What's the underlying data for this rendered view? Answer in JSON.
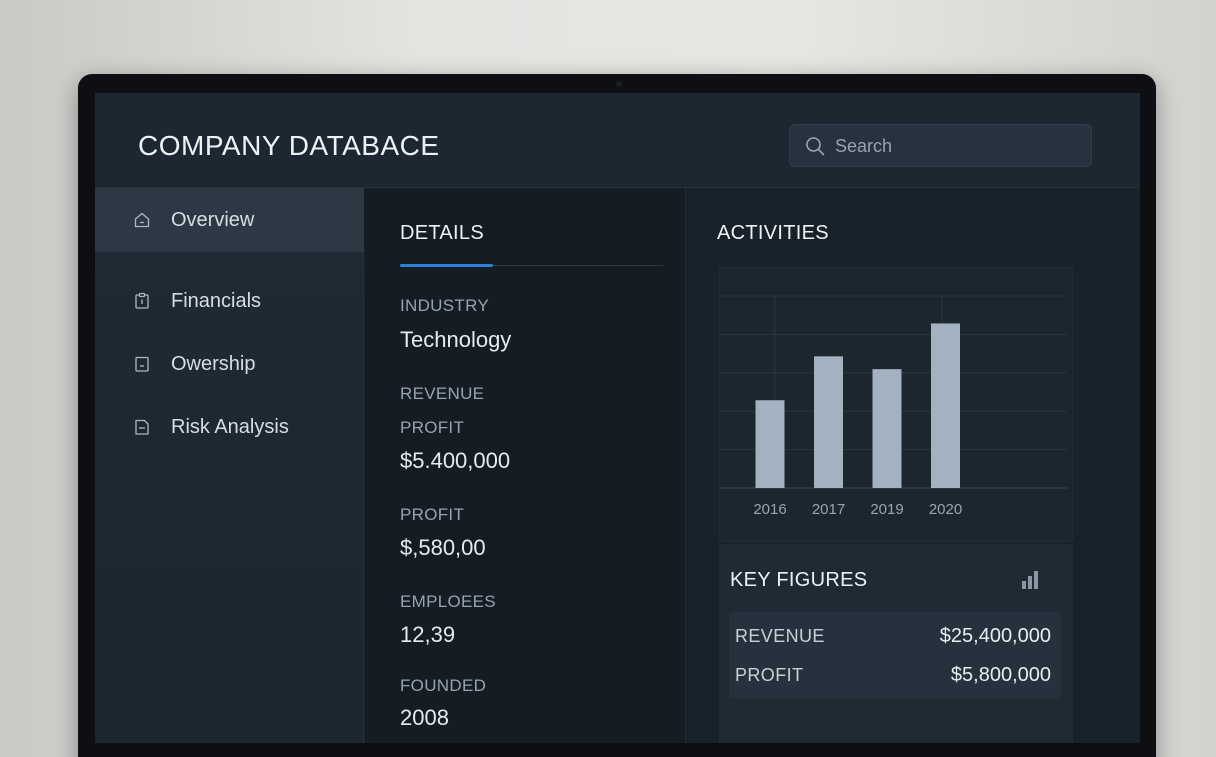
{
  "header": {
    "title": "COMPANY DATABACE",
    "search_placeholder": "Search"
  },
  "sidebar": {
    "items": [
      {
        "label": "Overview",
        "icon": "home-icon",
        "active": true
      },
      {
        "label": "Financials",
        "icon": "clipboard-icon",
        "active": false
      },
      {
        "label": "Owership",
        "icon": "document-icon",
        "active": false
      },
      {
        "label": "Risk Analysis",
        "icon": "file-icon",
        "active": false
      }
    ]
  },
  "details": {
    "title": "DETAILS",
    "fields": [
      {
        "label": "INDUSTRY",
        "value": "Technology"
      },
      {
        "label": "REVENUE",
        "value": ""
      },
      {
        "label": "PROFIT",
        "value": "$5.400,000"
      },
      {
        "label": "PROFIT",
        "value": "$,580,00"
      },
      {
        "label": "EMPLOEES",
        "value": "12,39"
      },
      {
        "label": "FOUNDED",
        "value": "2008"
      }
    ]
  },
  "activities": {
    "title": "ACTIVITIES"
  },
  "chart_data": {
    "type": "bar",
    "categories": [
      "2016",
      "2017",
      "2019",
      "2020"
    ],
    "values": [
      48,
      72,
      65,
      90
    ],
    "ylim": [
      0,
      105
    ],
    "grid": true,
    "bar_color": "#a3b2c0"
  },
  "key_figures": {
    "title": "KEY FIGURES",
    "icon": "bar-chart-icon",
    "rows": [
      {
        "label": "REVENUE",
        "value": "$25,400,000"
      },
      {
        "label": "PROFIT",
        "value": "$5,800,000"
      }
    ]
  },
  "colors": {
    "accent": "#2f7fd6",
    "background": "#172029",
    "sidebar_active": "#2c3945"
  }
}
